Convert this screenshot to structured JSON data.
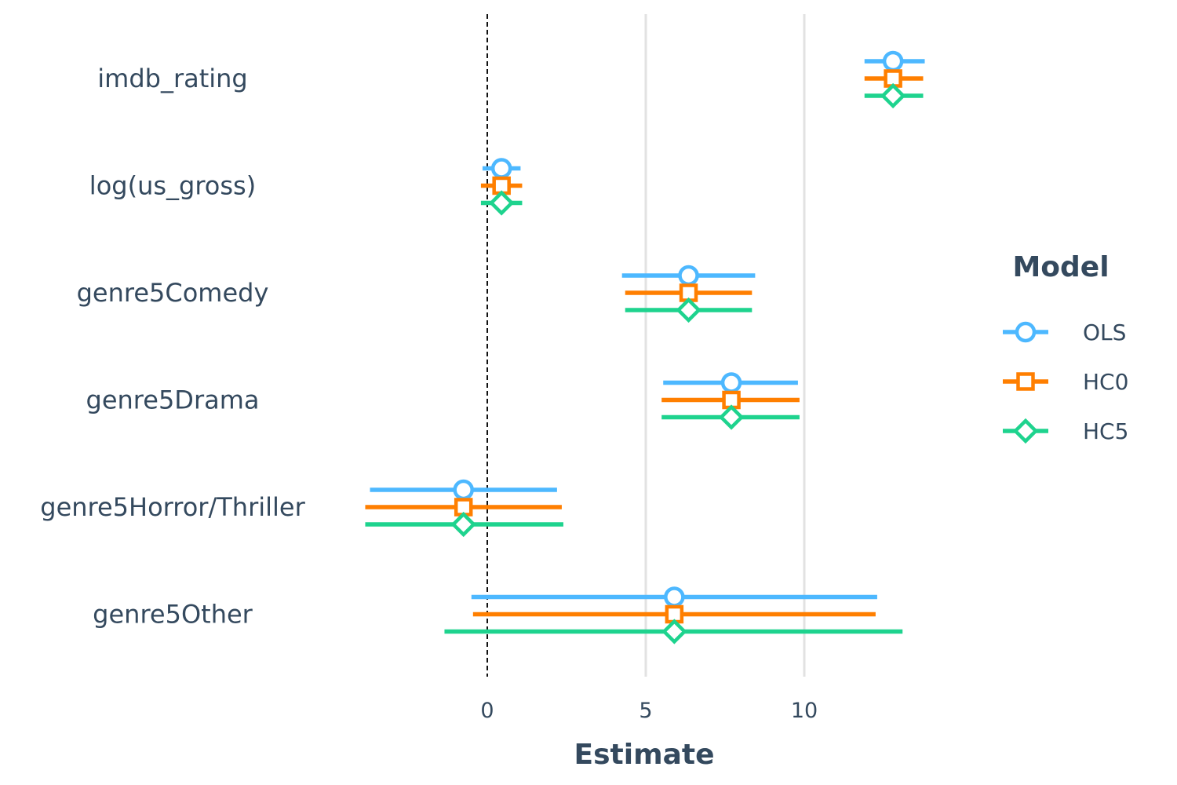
{
  "chart_data": {
    "type": "coefficient-plot",
    "xlabel": "Estimate",
    "x_ticks": [
      0,
      5,
      10
    ],
    "xlim": [
      -4,
      14
    ],
    "reference_line": 0,
    "grid": "vertical major only",
    "legend": {
      "title": "Model",
      "position": "right"
    },
    "terms": [
      "imdb_rating",
      "log(us_gross)",
      "genre5Comedy",
      "genre5Drama",
      "genre5Horror/Thriller",
      "genre5Other"
    ],
    "series": [
      {
        "name": "OLS",
        "color": "#4db8ff",
        "marker": "circle",
        "estimates": [
          12.8,
          0.45,
          6.35,
          7.7,
          -0.75,
          5.9
        ],
        "ci_low": [
          11.9,
          -0.15,
          4.25,
          5.55,
          -3.7,
          -0.5
        ],
        "ci_high": [
          13.8,
          1.05,
          8.45,
          9.8,
          2.2,
          12.3
        ]
      },
      {
        "name": "HC0",
        "color": "#ff7f00",
        "marker": "square",
        "estimates": [
          12.8,
          0.45,
          6.35,
          7.7,
          -0.75,
          5.9
        ],
        "ci_low": [
          11.9,
          -0.2,
          4.35,
          5.5,
          -3.85,
          -0.45
        ],
        "ci_high": [
          13.75,
          1.1,
          8.35,
          9.85,
          2.35,
          12.25
        ]
      },
      {
        "name": "HC5",
        "color": "#1ed38e",
        "marker": "diamond",
        "estimates": [
          12.8,
          0.45,
          6.35,
          7.7,
          -0.75,
          5.9
        ],
        "ci_low": [
          11.9,
          -0.2,
          4.35,
          5.5,
          -3.85,
          -1.35
        ],
        "ci_high": [
          13.75,
          1.1,
          8.35,
          9.85,
          2.4,
          13.1
        ]
      }
    ]
  }
}
